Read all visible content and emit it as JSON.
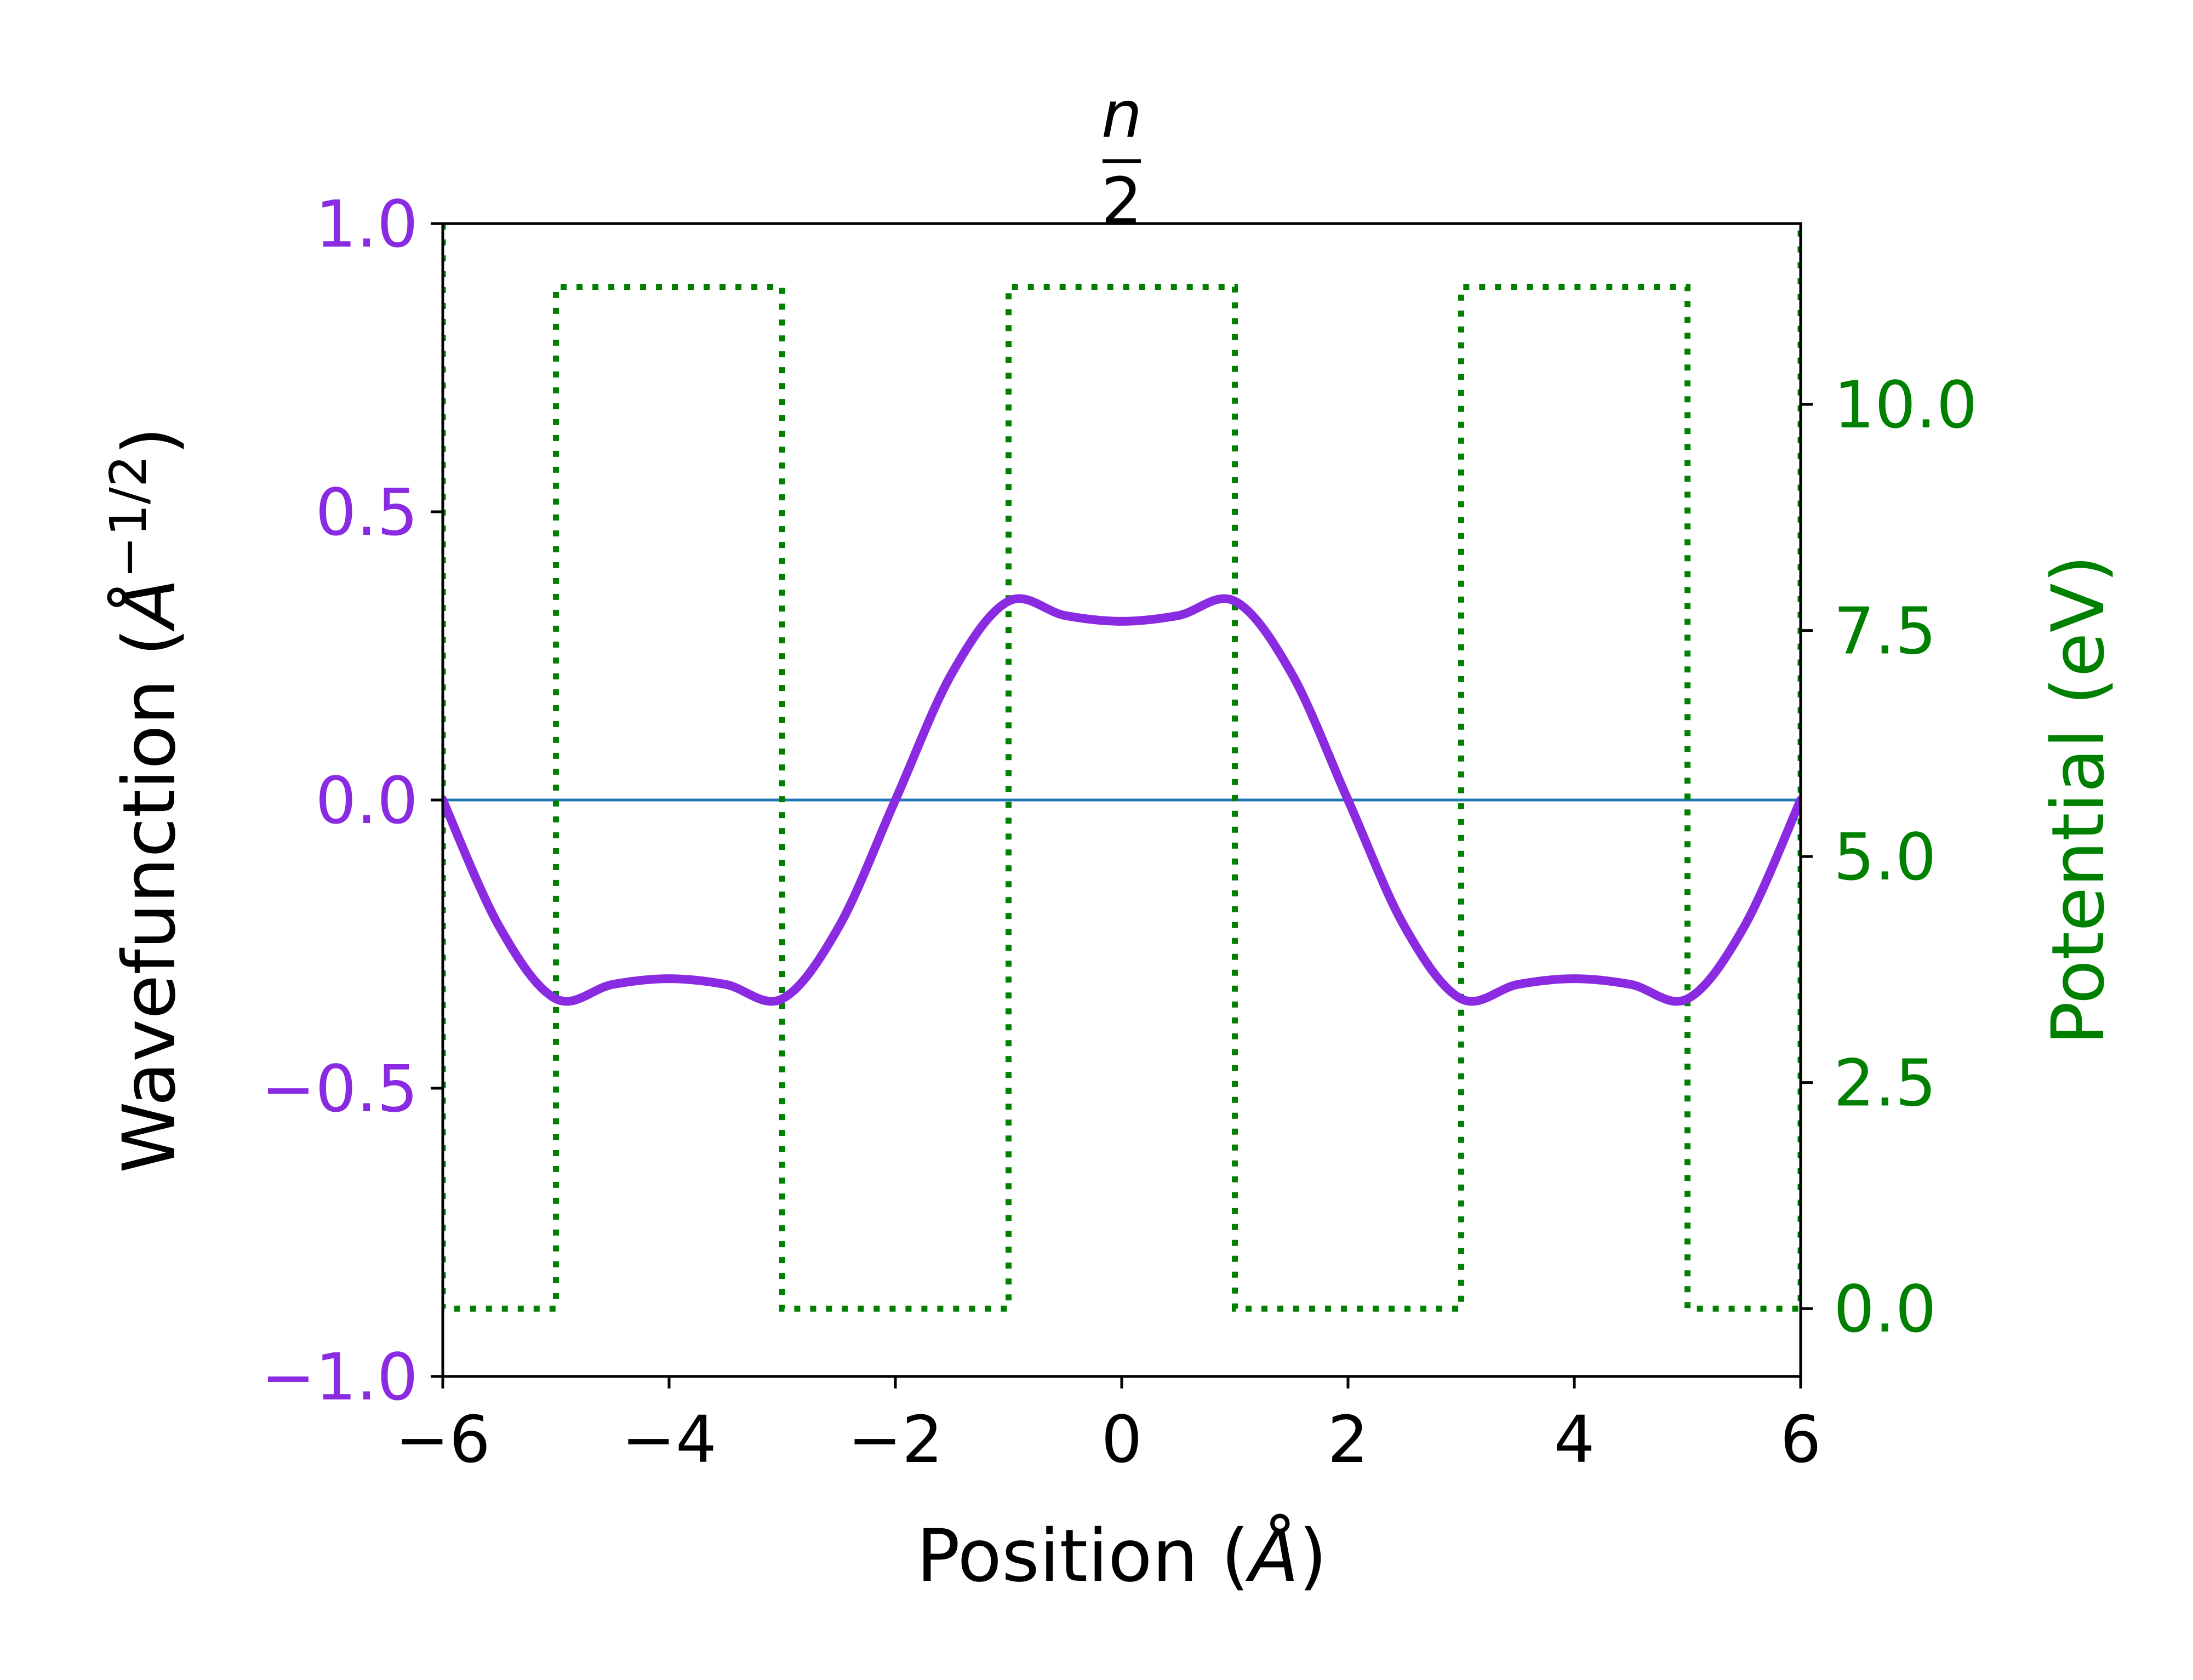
{
  "chart_data": {
    "type": "line",
    "title": {
      "numerator": "n",
      "denominator": "2"
    },
    "xlabel": {
      "prefix": "Position (",
      "unit": "Å",
      "suffix": ")"
    },
    "ylabel_left": {
      "prefix": "Wavefunction (",
      "unit": "Å",
      "exponent": "−1/2",
      "suffix": ")"
    },
    "ylabel_right": "Potential (eV)",
    "xlim": [
      -6,
      6
    ],
    "ylim_left": [
      -1.0,
      1.0
    ],
    "ylim_right": [
      -0.75,
      12.0
    ],
    "x_ticks": [
      -6,
      -4,
      -2,
      0,
      2,
      4,
      6
    ],
    "x_tick_labels": [
      "−6",
      "−4",
      "−2",
      "0",
      "2",
      "4",
      "6"
    ],
    "y_left_ticks": [
      -1.0,
      -0.5,
      0.0,
      0.5,
      1.0
    ],
    "y_left_tick_labels": [
      "−1.0",
      "−0.5",
      "0.0",
      "0.5",
      "1.0"
    ],
    "y_right_ticks": [
      0.0,
      2.5,
      5.0,
      7.5,
      10.0
    ],
    "y_right_tick_labels": [
      "0.0",
      "2.5",
      "5.0",
      "7.5",
      "10.0"
    ],
    "grid": false,
    "legend": "none",
    "colors": {
      "wavefunction": "#8a2be2",
      "potential": "#008000",
      "zero_line": "#1f77b4",
      "axes": "#000000"
    },
    "series": [
      {
        "role": "wavefunction",
        "axis": "left",
        "style": "solid",
        "x": [
          -6.0,
          -5.5,
          -5.0,
          -4.5,
          -4.0,
          -3.5,
          -3.0,
          -2.5,
          -2.0,
          -1.5,
          -1.0,
          -0.5,
          0.0,
          0.5,
          1.0,
          1.5,
          2.0,
          2.5,
          3.0,
          3.5,
          4.0,
          4.5,
          5.0,
          5.5,
          6.0
        ],
        "y": [
          0.0,
          -0.22,
          -0.345,
          -0.32,
          -0.31,
          -0.32,
          -0.345,
          -0.22,
          0.0,
          0.22,
          0.345,
          0.32,
          0.31,
          0.32,
          0.345,
          0.22,
          0.0,
          -0.22,
          -0.345,
          -0.32,
          -0.31,
          -0.32,
          -0.345,
          -0.22,
          0.0
        ]
      },
      {
        "role": "potential",
        "axis": "right",
        "style": "dotted",
        "x": [
          -6,
          -6,
          -5,
          -5,
          -3,
          -3,
          -1,
          -1,
          1,
          1,
          3,
          3,
          5,
          5,
          6,
          6
        ],
        "y": [
          12,
          0,
          0,
          11.3,
          11.3,
          0,
          0,
          11.3,
          11.3,
          0,
          0,
          11.3,
          11.3,
          0,
          0,
          12
        ]
      },
      {
        "role": "zero_line",
        "axis": "left",
        "style": "solid",
        "x": [
          -6,
          6
        ],
        "y": [
          0,
          0
        ]
      }
    ]
  }
}
